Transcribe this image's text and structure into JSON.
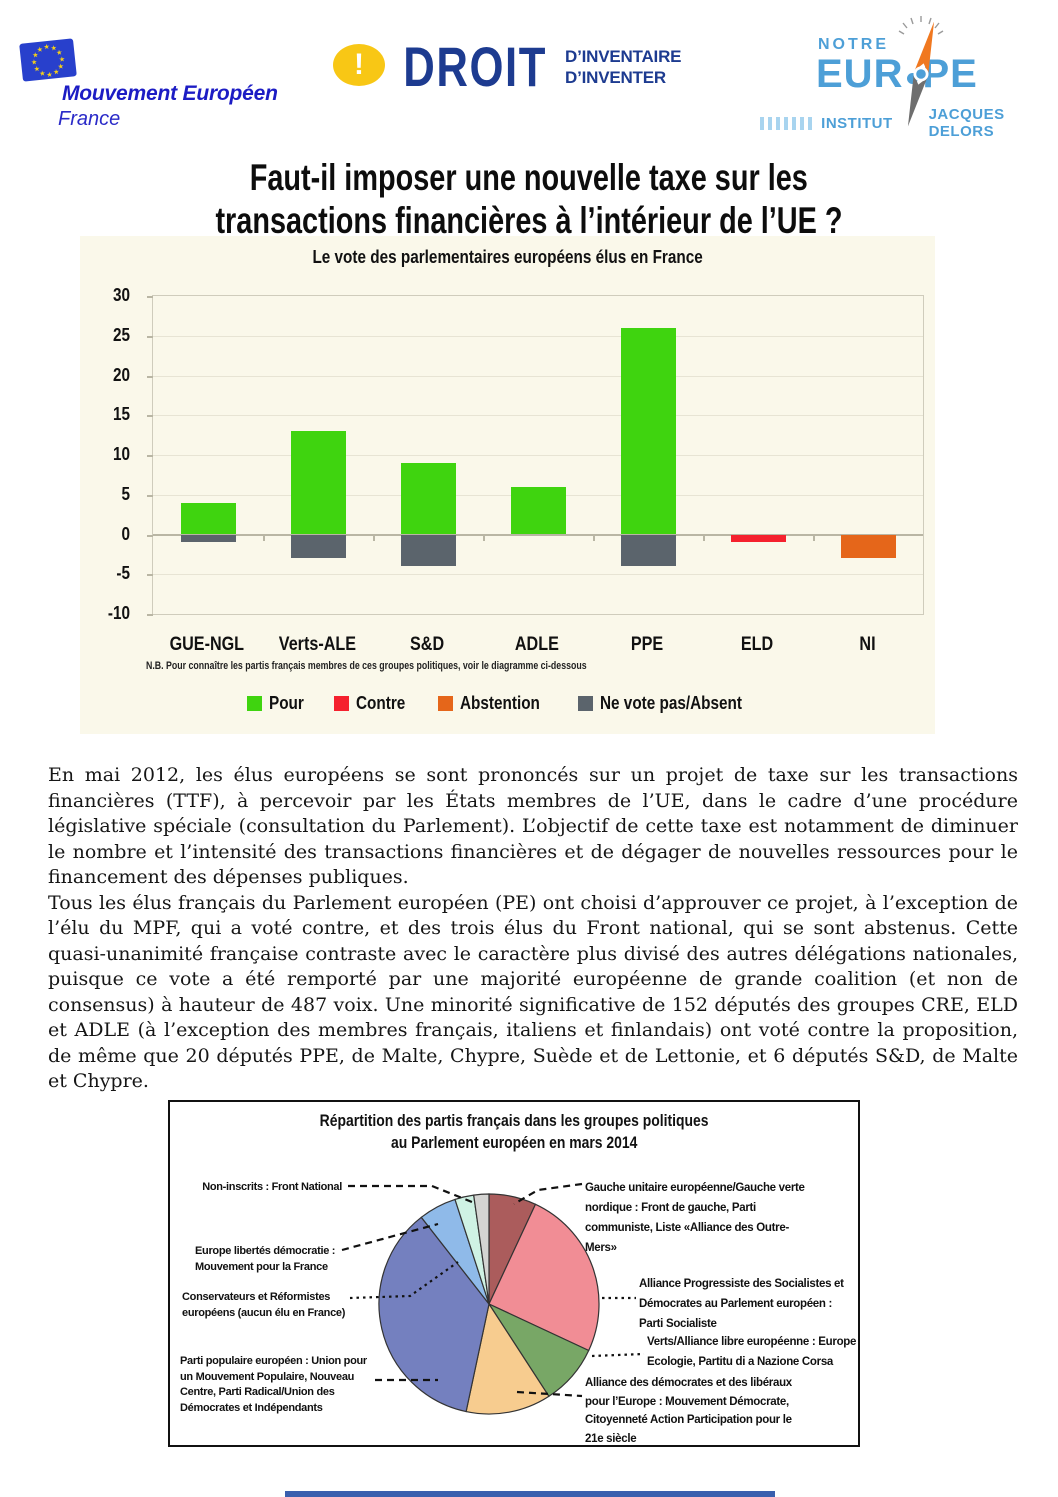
{
  "header": {
    "mouvement_europeen": {
      "name": "Mouvement Européen",
      "country": "France"
    },
    "droit": {
      "bang": "!",
      "word": "DROIT",
      "sub_line1": "D’INVENTAIRE",
      "sub_line2": "D’INVENTER"
    },
    "notre_europe": {
      "word_top": "NOTRE",
      "word_left": "EUR",
      "word_right": "PE",
      "institut": "INSTITUT",
      "jacques_delors": "JACQUES DELORS"
    }
  },
  "title": {
    "line1": "Faut-il imposer une nouvelle taxe sur les",
    "line2": "transactions financières à l’intérieur de l’UE ?"
  },
  "paragraphs": {
    "p1": "En mai 2012, les élus européens se sont prononcés sur un projet de taxe sur les transactions financières (TTF), à percevoir par les États membres de l’UE, dans le cadre d’une procédure législative spéciale (consultation du Parlement). L’objectif de cette taxe est notamment de diminuer le nombre et l’intensité des transactions financières et de dégager de nouvelles ressources pour le financement des dépenses publiques.",
    "p2": "Tous les élus français du Parlement européen (PE) ont choisi d’approuver ce projet, à l’exception de l’élu du MPF, qui a voté contre, et des trois élus du Front national, qui se sont abstenus. Cette quasi-unanimité française contraste avec le caractère plus divisé des autres délégations nationales, puisque ce vote a été remporté par une majorité européenne de grande coalition (et non de consensus) à hauteur de 487 voix. Une minorité significative de 152 députés des groupes CRE, ELD et ADLE (à l’exception des membres français, italiens et finlandais) ont voté contre la proposition, de même que 20 députés PPE, de Malte, Chypre, Suède et de Lettonie, et 6 députés S&D, de Malte et Chypre."
  },
  "chart_data": [
    {
      "type": "bar",
      "stacked": true,
      "title": "Le vote des parlementaires européens élus en France",
      "categories": [
        "GUE-NGL",
        "Verts-ALE",
        "S&D",
        "ADLE",
        "PPE",
        "ELD",
        "NI"
      ],
      "series": [
        {
          "name": "Pour",
          "color": "#3fd40f",
          "values": [
            4,
            13,
            9,
            6,
            26,
            0,
            0
          ]
        },
        {
          "name": "Contre",
          "color": "#f5212e",
          "values": [
            0,
            0,
            0,
            0,
            0,
            -1,
            0
          ]
        },
        {
          "name": "Abstention",
          "color": "#e5661a",
          "values": [
            0,
            0,
            0,
            0,
            0,
            0,
            -3
          ]
        },
        {
          "name": "Ne vote pas/Absent",
          "color": "#5b646c",
          "values": [
            -1,
            -3,
            -4,
            0,
            -4,
            0,
            0
          ]
        }
      ],
      "ylim": [
        -10,
        30
      ],
      "yticks": [
        30,
        25,
        20,
        15,
        10,
        5,
        0,
        -5,
        -10
      ],
      "grid": true,
      "legend_position": "bottom",
      "note": "N.B. Pour connaître les partis français membres de ces groupes politiques, voir le diagramme ci-dessous"
    },
    {
      "type": "pie",
      "title_line1": "Répartition des partis français dans les groupes politiques",
      "title_line2": "au Parlement européen en mars 2014",
      "start_angle_deg": 0,
      "slices": [
        {
          "label": "Gauche unitaire européenne/Gauche verte nordique : Front de gauche, Parti communiste, Liste «Alliance des Outre-Mers»",
          "angle_deg": 25,
          "color": "#ab5c5c"
        },
        {
          "label": "Alliance Progressiste des Socialistes et Démocrates au Parlement européen : Parti Socialiste",
          "angle_deg": 90,
          "color": "#f18d95"
        },
        {
          "label": "Verts/Alliance libre européenne : Europe Ecologie, Partitu di a Nazione Corsa",
          "angle_deg": 32,
          "color": "#78a766"
        },
        {
          "label": "Alliance des démocrates et des libéraux pour l’Europe : Mouvement Démocrate, Citoyenneté Action Participation pour le 21e siècle",
          "angle_deg": 45,
          "color": "#f7cc8f"
        },
        {
          "label": "Parti populaire européen : Union pour un Mouvement Populaire, Nouveau Centre, Parti Radical/Union des Démocrates et Indépendants",
          "angle_deg": 130,
          "color": "#7480bf"
        },
        {
          "label": "Europe libertés démocratie : Mouvement pour la France",
          "angle_deg": 20,
          "color": "#8fbae9"
        },
        {
          "label": "Conservateurs et Réformistes européens (aucun élu en France)",
          "angle_deg": 10,
          "color": "#cff2e4"
        },
        {
          "label": "Non-inscrits : Front National",
          "angle_deg": 8,
          "color": "#d4d4d2"
        }
      ]
    }
  ]
}
